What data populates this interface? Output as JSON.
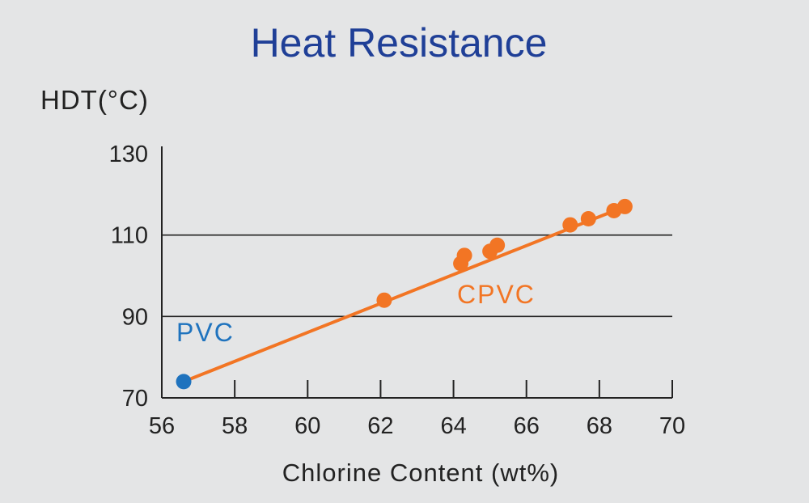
{
  "chart_data": {
    "type": "line",
    "title": "Heat Resistance",
    "ylabel": "HDT(°C)",
    "xlabel": "Chlorine Content (wt%)",
    "xlim": [
      56,
      70
    ],
    "ylim": [
      70,
      130
    ],
    "xticks": [
      56,
      58,
      60,
      62,
      64,
      66,
      68,
      70
    ],
    "yticks": [
      70,
      90,
      110,
      130
    ],
    "gridlines_y": [
      90,
      110
    ],
    "series": [
      {
        "name": "PVC",
        "color": "#1f73be",
        "points": [
          {
            "x": 56.6,
            "y": 74
          }
        ]
      },
      {
        "name": "CPVC",
        "color": "#f27524",
        "points": [
          {
            "x": 62.1,
            "y": 94
          },
          {
            "x": 64.2,
            "y": 103
          },
          {
            "x": 64.3,
            "y": 105
          },
          {
            "x": 65.0,
            "y": 106
          },
          {
            "x": 65.2,
            "y": 107.5
          },
          {
            "x": 67.2,
            "y": 112.5
          },
          {
            "x": 67.7,
            "y": 114
          },
          {
            "x": 68.4,
            "y": 116
          },
          {
            "x": 68.7,
            "y": 117
          }
        ]
      }
    ],
    "trend_line": {
      "color": "#f27524",
      "from": {
        "x": 56.6,
        "y": 74
      },
      "to": {
        "x": 68.7,
        "y": 117
      }
    },
    "colors": {
      "title": "#1f3f97",
      "text": "#222222",
      "axis": "#222222"
    }
  }
}
